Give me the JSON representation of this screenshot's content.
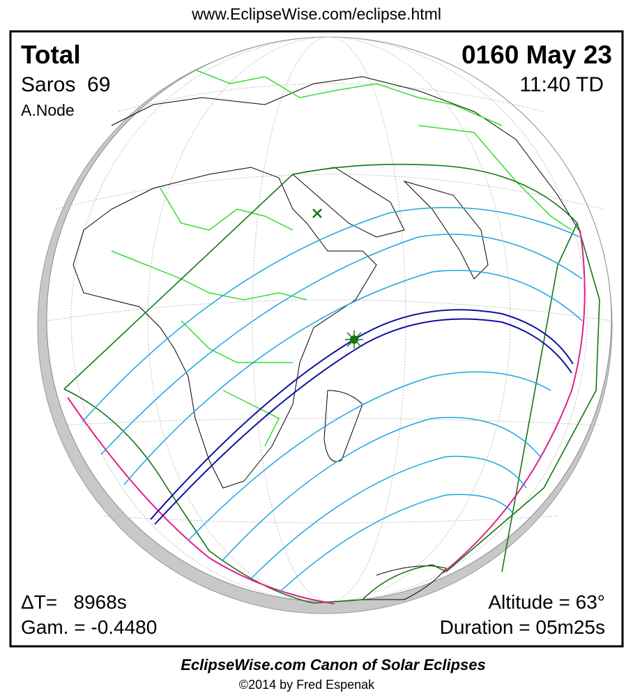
{
  "header": {
    "url": "www.EclipseWise.com/eclipse.html"
  },
  "panel": {
    "eclipse_type": "Total",
    "saros": "Saros  69",
    "node": "A.Node",
    "date": "0160 May 23",
    "time": "11:40 TD",
    "delta_t": "ΔT=   8968s",
    "gamma": "Gam. = -0.4480",
    "altitude": "Altitude = 63°",
    "duration": "Duration = 05m25s"
  },
  "footer": {
    "title": "EclipseWise.com Canon of Solar Eclipses",
    "copyright": "©2014 by Fred Espenak"
  }
}
